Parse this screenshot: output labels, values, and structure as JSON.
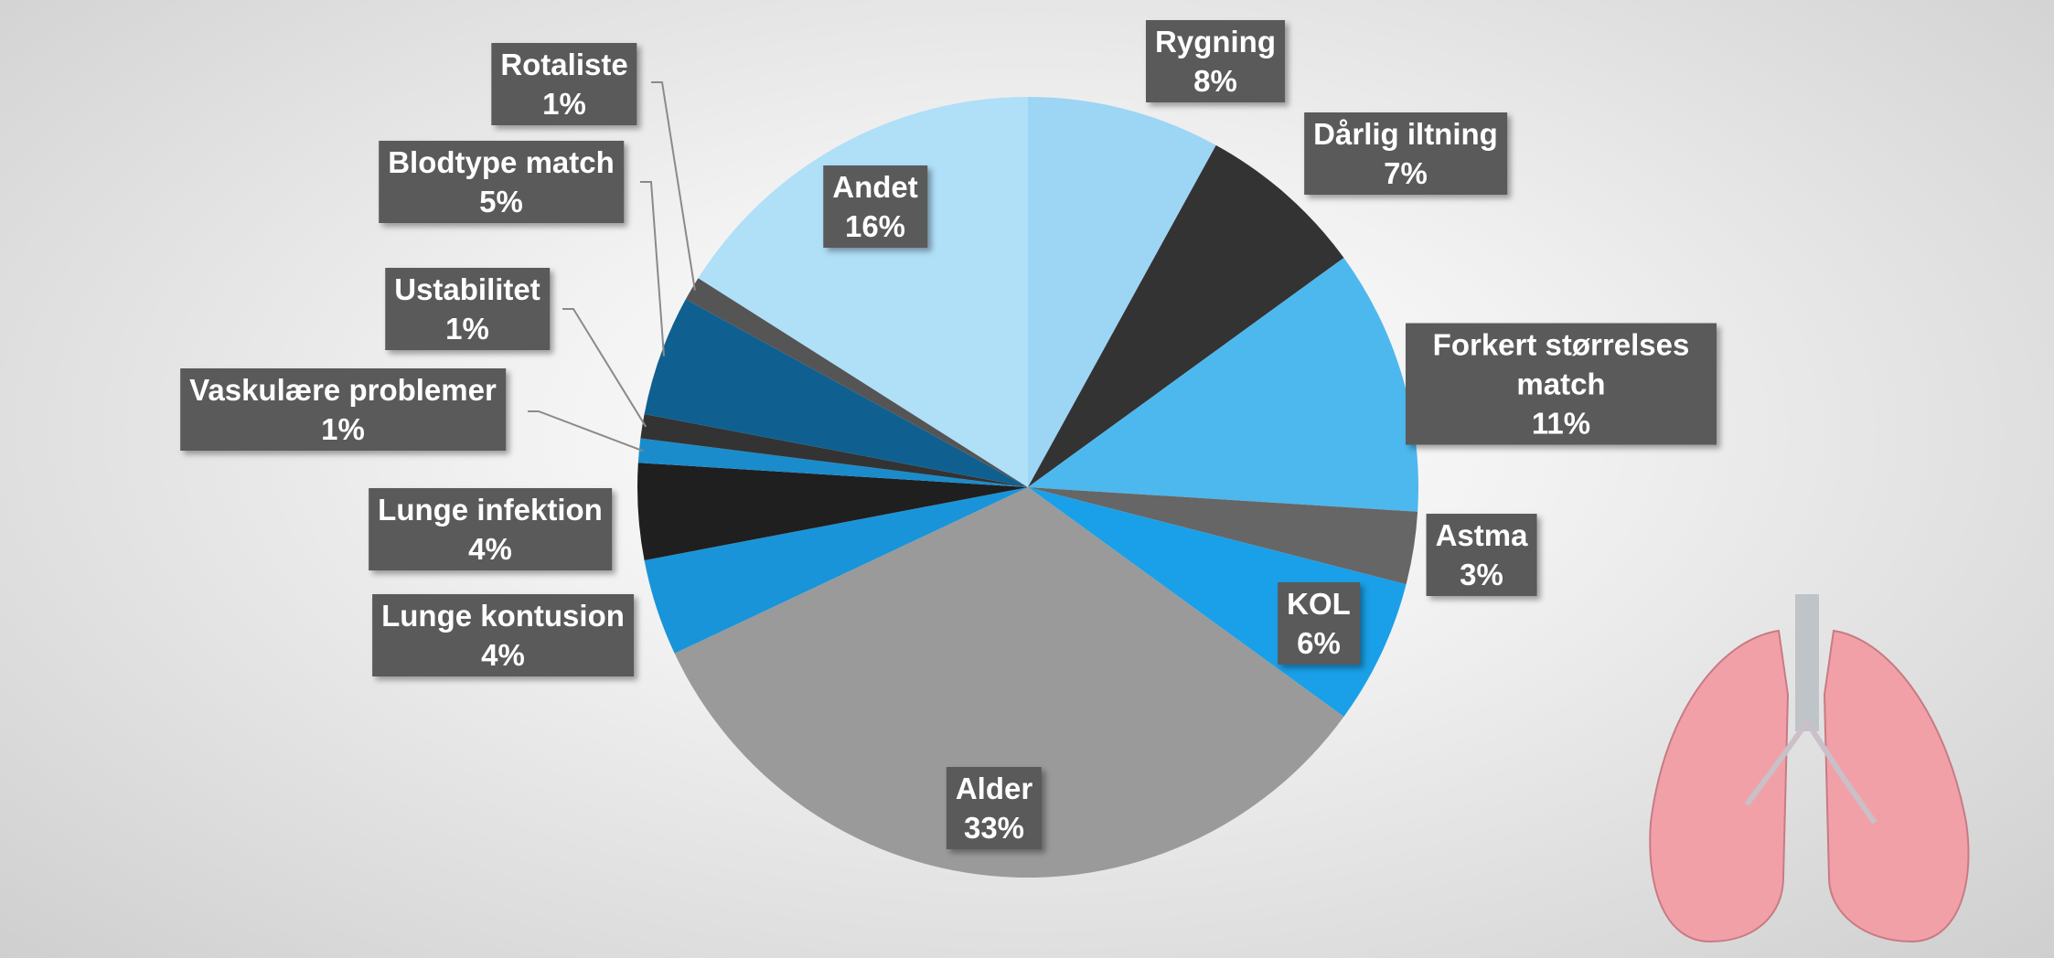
{
  "chart_data": {
    "type": "pie",
    "categories": [
      "Rygning",
      "Dårlig iltning",
      "Forkert størrelses match",
      "Astma",
      "KOL",
      "Alder",
      "Lunge kontusion",
      "Lunge infektion",
      "Vaskulære problemer",
      "Ustabilitet",
      "Blodtype match",
      "Rotaliste",
      "Andet"
    ],
    "values": [
      8,
      7,
      11,
      3,
      6,
      33,
      4,
      4,
      1,
      1,
      5,
      1,
      16
    ],
    "value_labels": [
      "8%",
      "7%",
      "11%",
      "3%",
      "6%",
      "33%",
      "4%",
      "4%",
      "1%",
      "1%",
      "5%",
      "1%",
      "16%"
    ],
    "colors": [
      "#9dd5f5",
      "#333333",
      "#4db8ee",
      "#666666",
      "#1aa0e8",
      "#9a9a9a",
      "#1a94d8",
      "#1f1f1f",
      "#1a8ccc",
      "#333333",
      "#0f6090",
      "#555555",
      "#b0dff8"
    ]
  }
}
